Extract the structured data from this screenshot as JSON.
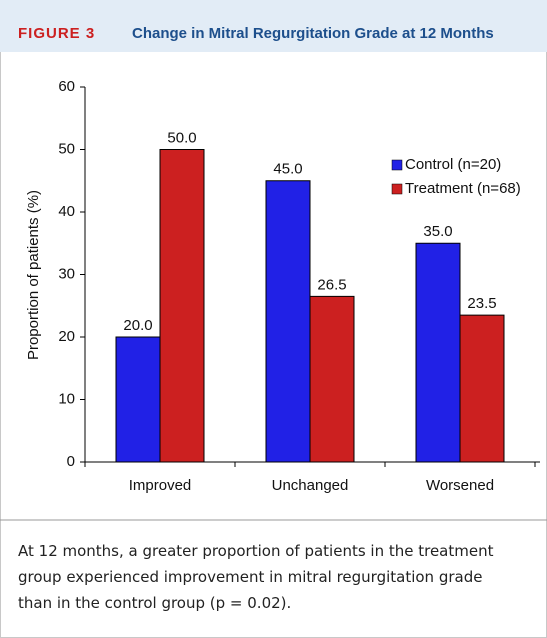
{
  "chart_data": {
    "type": "bar",
    "figure_label": "FIGURE 3",
    "title": "Change in Mitral Regurgitation Grade at 12 Months",
    "y_label": "Proportion of patients (%)",
    "categories": [
      "Improved",
      "Unchanged",
      "Worsened"
    ],
    "series": [
      {
        "name": "Control (n=20)",
        "color": "#2121e6",
        "values": [
          20,
          45,
          35
        ],
        "value_labels": [
          "20.0",
          "45.0",
          "35.0"
        ]
      },
      {
        "name": "Treatment (n=68)",
        "color": "#cc2020",
        "values": [
          50,
          26.5,
          23.5
        ],
        "value_labels": [
          "50.0",
          "26.5",
          "23.5"
        ]
      }
    ],
    "ylim": [
      0,
      60
    ],
    "yticks": [
      0,
      10,
      20,
      30,
      40,
      50,
      60
    ],
    "legend": "upper right",
    "caption": "At 12 months, a greater proportion of patients in the treatment group experienced improvement in mitral regurgitation grade than in the control group (p = 0.02)."
  }
}
